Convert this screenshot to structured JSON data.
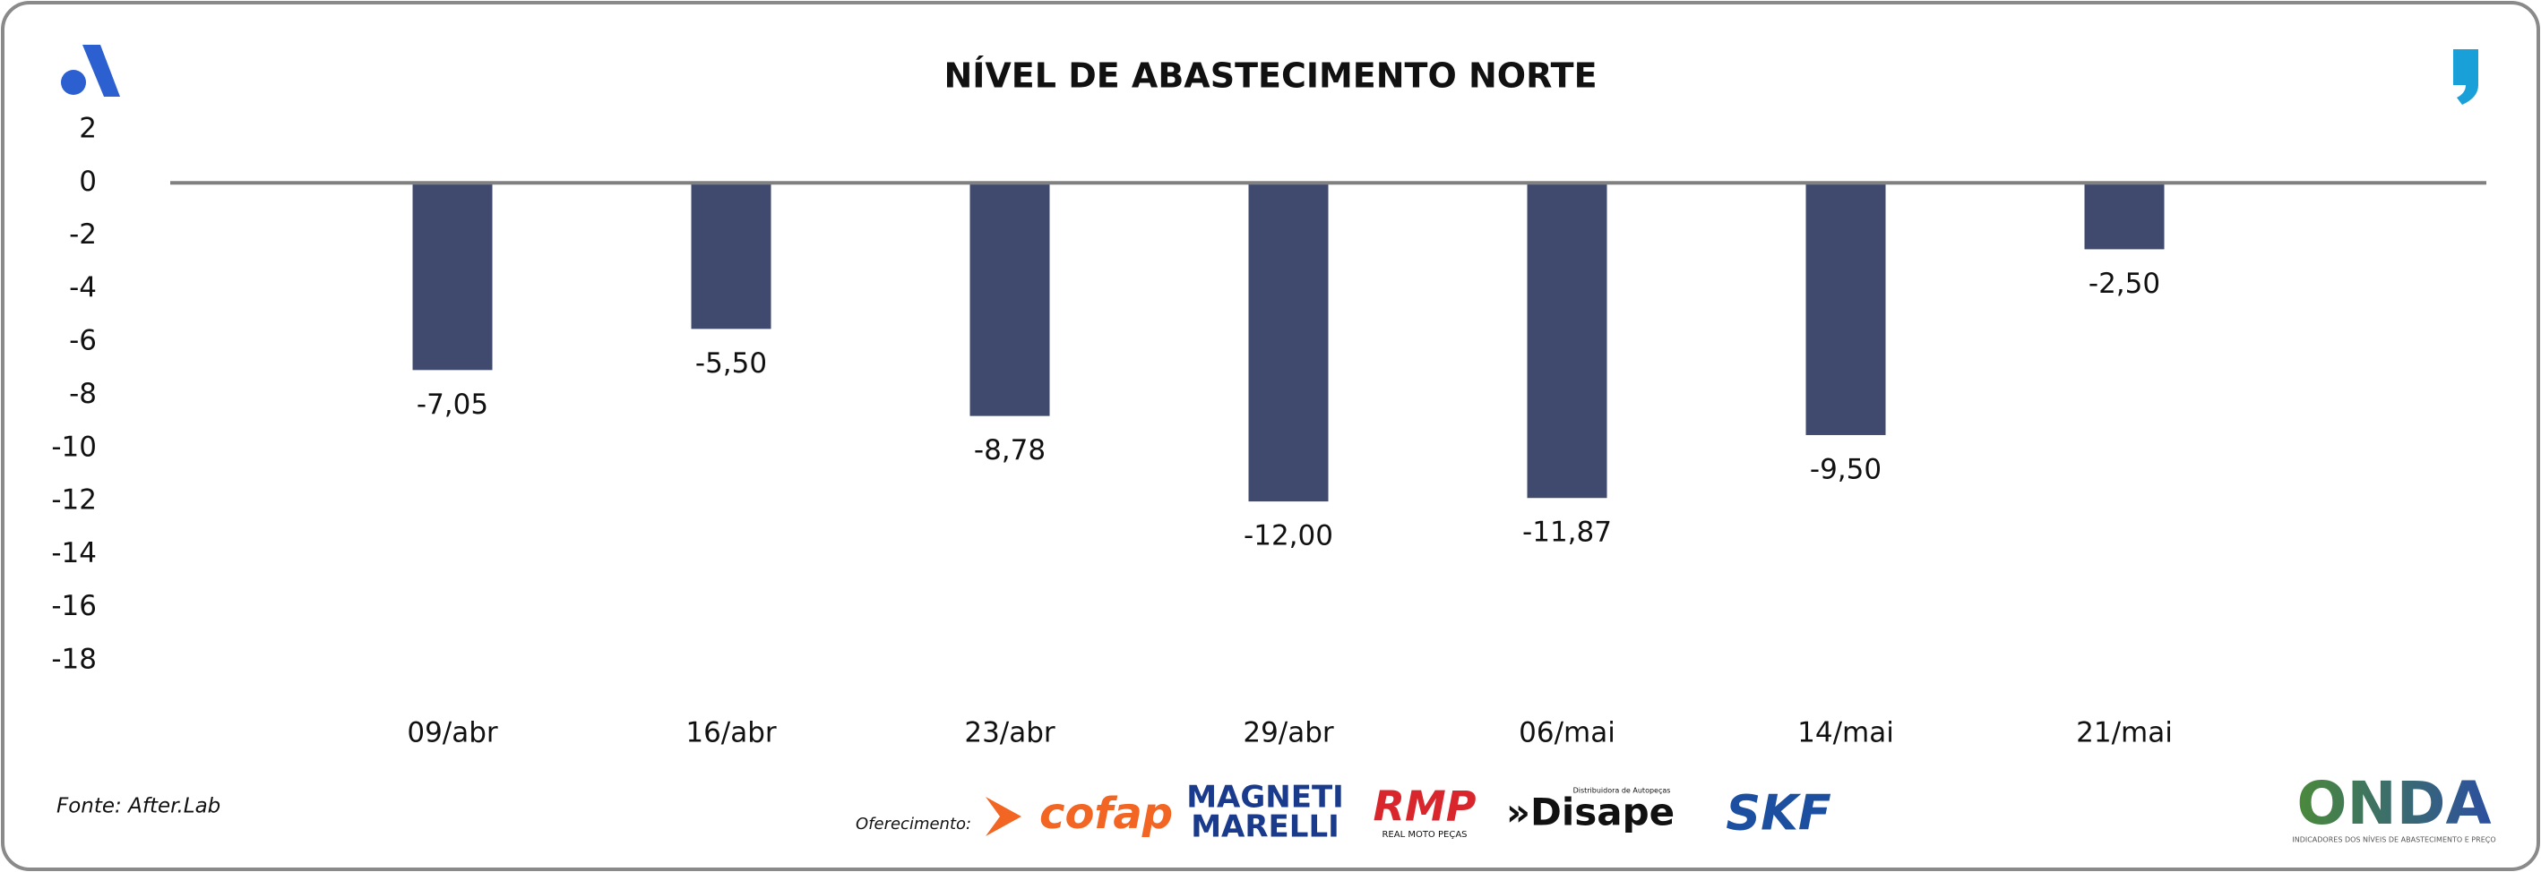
{
  "chart_data": {
    "type": "bar",
    "title": "NÍVEL DE ABASTECIMENTO NORTE",
    "categories": [
      "09/abr",
      "16/abr",
      "23/abr",
      "29/abr",
      "06/mai",
      "14/mai",
      "21/mai"
    ],
    "values": [
      -7.05,
      -5.5,
      -8.78,
      -12,
      -11.87,
      -9.5,
      -2.5
    ],
    "value_labels": [
      "-7,05",
      "-5,50",
      "-8,78",
      "-12,00",
      "-11,87",
      "-9,50",
      "-2,50"
    ],
    "color": "#3f4a6e",
    "ylim": [
      -18,
      2
    ],
    "yticks": [
      2,
      0,
      -2,
      -4,
      -6,
      -8,
      -10,
      -12,
      -14,
      -16,
      -18
    ],
    "grid": false
  },
  "footer": {
    "source": "Fonte: After.Lab",
    "sponsor_label": "Oferecimento:",
    "logos": {
      "cofap": "cofap",
      "magneti": "MAGNETI",
      "marelli": "MARELLI",
      "rmp": "RMP",
      "rmp_sub": "REAL MOTO PEÇAS",
      "disape_sub": "Distribuidora de Autopeças",
      "disape": "»Disape",
      "skf": "SKF"
    },
    "brand": "ONDA",
    "brand_tagline": "INDICADORES DOS NÍVEIS DE ABASTECIMENTO E PREÇO"
  }
}
